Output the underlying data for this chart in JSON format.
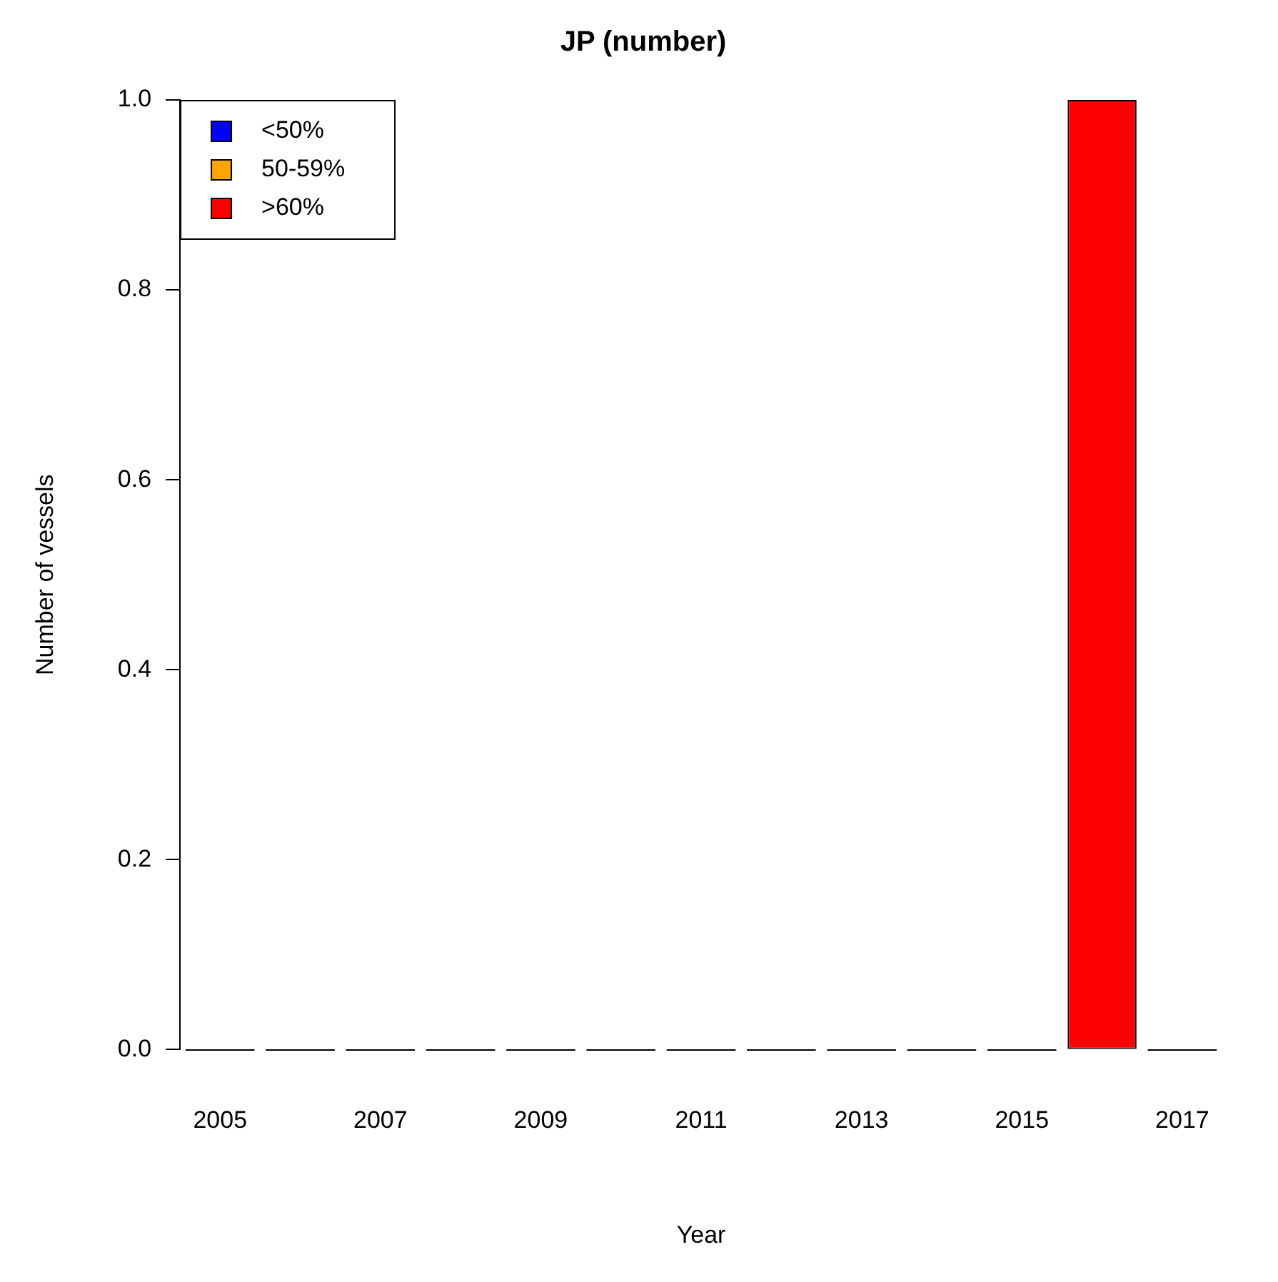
{
  "chart_data": {
    "type": "bar",
    "title": "JP (number)",
    "xlabel": "Year",
    "ylabel": "Number of vessels",
    "categories": [
      "2005",
      null,
      "2007",
      null,
      "2009",
      null,
      "2011",
      null,
      "2013",
      null,
      "2015",
      null,
      "2017"
    ],
    "series": [
      {
        "name": "<50%",
        "color": "#0000ff",
        "values": [
          0,
          0,
          0,
          0,
          0,
          0,
          0,
          0,
          0,
          0,
          0,
          0,
          0
        ]
      },
      {
        "name": "50-59%",
        "color": "#ffa500",
        "values": [
          0,
          0,
          0,
          0,
          0,
          0,
          0,
          0,
          0,
          0,
          0,
          0,
          0
        ]
      },
      {
        "name": ">60%",
        "color": "#ff0000",
        "values": [
          0,
          0,
          0,
          0,
          0,
          0,
          0,
          0,
          0,
          0,
          0,
          1,
          0
        ]
      }
    ],
    "stacked": true,
    "ylim": [
      0,
      1
    ],
    "yticks": [
      {
        "value": 0,
        "label": "0.0"
      },
      {
        "value": 0.2,
        "label": "0.2"
      },
      {
        "value": 0.4,
        "label": "0.4"
      },
      {
        "value": 0.6,
        "label": "0.6"
      },
      {
        "value": 0.8,
        "label": "0.8"
      },
      {
        "value": 1,
        "label": "1.0"
      }
    ],
    "grid": false,
    "legend": "top left"
  }
}
